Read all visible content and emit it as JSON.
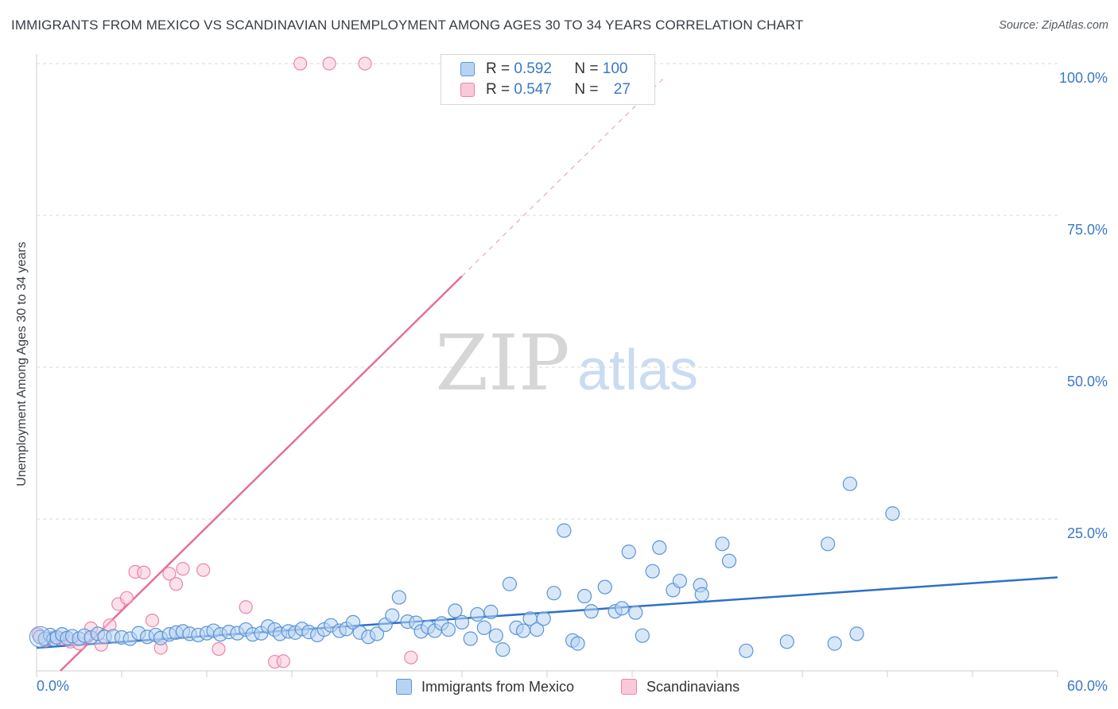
{
  "title": "IMMIGRANTS FROM MEXICO VS SCANDINAVIAN UNEMPLOYMENT AMONG AGES 30 TO 34 YEARS CORRELATION CHART",
  "source": "Source: ZipAtlas.com",
  "watermark": {
    "zip": "ZIP",
    "atlas": "atlas"
  },
  "legend": {
    "rows": [
      {
        "r_label": "R = ",
        "r_value": "0.592",
        "n_label": "N = ",
        "n_value": "100",
        "color": "#5b95d6"
      },
      {
        "r_label": "R = ",
        "r_value": "0.547",
        "n_label": "N = ",
        "n_value": "27",
        "color": "#e985a8"
      }
    ]
  },
  "bottom_legend": [
    {
      "label": "Immigrants from Mexico",
      "color": "#5b95d6"
    },
    {
      "label": "Scandinavians",
      "color": "#e985a8"
    }
  ],
  "chart_data": {
    "type": "scatter",
    "title": "IMMIGRANTS FROM MEXICO VS SCANDINAVIAN UNEMPLOYMENT AMONG AGES 30 TO 34 YEARS CORRELATION CHART",
    "xlabel": "",
    "ylabel": "Unemployment Among Ages 30 to 34 years",
    "xlim": [
      0,
      60
    ],
    "ylim": [
      0,
      102
    ],
    "x_tick_labels": [
      "0.0%",
      "60.0%"
    ],
    "x_tick_values": [
      0,
      60
    ],
    "y_tick_labels": [
      "100.0%",
      "75.0%",
      "50.0%",
      "25.0%"
    ],
    "y_tick_values": [
      100,
      75,
      50,
      25
    ],
    "colors": {
      "blue": "#5b95d6",
      "blue_fill": "#b8d3f2",
      "pink": "#e985a8",
      "pink_fill": "#f9c9d9",
      "grid": "#d9d9d9",
      "tick_label": "#3a78c8"
    },
    "series": [
      {
        "name": "Immigrants from Mexico",
        "r": 0.592,
        "n": 100,
        "trendline": {
          "x": [
            0,
            60
          ],
          "y": [
            3.8,
            15.4
          ],
          "style": "solid"
        },
        "points": [
          [
            0.2,
            5.6
          ],
          [
            0.5,
            5.3
          ],
          [
            0.8,
            5.9
          ],
          [
            1.0,
            5.2
          ],
          [
            1.2,
            5.5
          ],
          [
            1.5,
            6.0
          ],
          [
            1.8,
            5.4
          ],
          [
            2.1,
            5.7
          ],
          [
            2.5,
            5.3
          ],
          [
            2.8,
            5.8
          ],
          [
            3.2,
            5.5
          ],
          [
            3.6,
            6.1
          ],
          [
            4.0,
            5.6
          ],
          [
            4.5,
            5.7
          ],
          [
            5.0,
            5.5
          ],
          [
            5.5,
            5.3
          ],
          [
            6.0,
            6.2
          ],
          [
            6.5,
            5.6
          ],
          [
            7.0,
            5.9
          ],
          [
            7.3,
            5.4
          ],
          [
            7.8,
            6.0
          ],
          [
            8.2,
            6.3
          ],
          [
            8.6,
            6.5
          ],
          [
            9.0,
            6.1
          ],
          [
            9.5,
            5.9
          ],
          [
            10.0,
            6.2
          ],
          [
            10.4,
            6.6
          ],
          [
            10.8,
            6.0
          ],
          [
            11.3,
            6.4
          ],
          [
            11.8,
            6.2
          ],
          [
            12.3,
            6.8
          ],
          [
            12.7,
            6.0
          ],
          [
            13.2,
            6.2
          ],
          [
            13.6,
            7.3
          ],
          [
            14.0,
            6.8
          ],
          [
            14.3,
            6.1
          ],
          [
            14.8,
            6.5
          ],
          [
            15.2,
            6.3
          ],
          [
            15.6,
            6.9
          ],
          [
            16.0,
            6.4
          ],
          [
            16.5,
            5.9
          ],
          [
            16.9,
            6.8
          ],
          [
            17.3,
            7.5
          ],
          [
            17.8,
            6.6
          ],
          [
            18.2,
            6.9
          ],
          [
            18.6,
            8.0
          ],
          [
            19.0,
            6.3
          ],
          [
            19.5,
            5.6
          ],
          [
            20.0,
            6.1
          ],
          [
            20.5,
            7.6
          ],
          [
            20.9,
            9.1
          ],
          [
            21.3,
            12.1
          ],
          [
            21.8,
            8.1
          ],
          [
            22.3,
            7.9
          ],
          [
            22.6,
            6.5
          ],
          [
            23.0,
            7.2
          ],
          [
            23.4,
            6.6
          ],
          [
            23.8,
            7.8
          ],
          [
            24.2,
            6.8
          ],
          [
            24.6,
            9.9
          ],
          [
            25.0,
            8.0
          ],
          [
            25.5,
            5.3
          ],
          [
            25.9,
            9.3
          ],
          [
            26.3,
            7.1
          ],
          [
            26.7,
            9.7
          ],
          [
            27.0,
            5.8
          ],
          [
            27.4,
            3.5
          ],
          [
            27.8,
            14.3
          ],
          [
            28.2,
            7.1
          ],
          [
            28.6,
            6.6
          ],
          [
            29.0,
            8.6
          ],
          [
            29.4,
            6.8
          ],
          [
            29.8,
            8.6
          ],
          [
            30.4,
            12.8
          ],
          [
            31.0,
            23.1
          ],
          [
            31.5,
            5.0
          ],
          [
            31.8,
            4.5
          ],
          [
            32.2,
            12.3
          ],
          [
            32.6,
            9.8
          ],
          [
            33.4,
            13.8
          ],
          [
            34.0,
            9.8
          ],
          [
            34.4,
            10.3
          ],
          [
            34.8,
            19.6
          ],
          [
            35.2,
            9.6
          ],
          [
            35.6,
            5.8
          ],
          [
            36.2,
            16.4
          ],
          [
            36.6,
            20.3
          ],
          [
            37.4,
            13.3
          ],
          [
            37.8,
            14.8
          ],
          [
            39.0,
            14.1
          ],
          [
            39.1,
            12.6
          ],
          [
            40.3,
            20.9
          ],
          [
            40.7,
            18.1
          ],
          [
            41.7,
            3.3
          ],
          [
            44.1,
            4.8
          ],
          [
            46.5,
            20.9
          ],
          [
            46.9,
            4.5
          ],
          [
            47.8,
            30.8
          ],
          [
            48.2,
            6.1
          ],
          [
            50.3,
            25.9
          ]
        ]
      },
      {
        "name": "Scandinavians",
        "r": 0.547,
        "n": 27,
        "trendline": {
          "x": [
            1.4,
            25.0
          ],
          "y": [
            0.0,
            65.0
          ],
          "dashed_x": [
            25.0,
            37.0
          ],
          "dashed_y": [
            65.0,
            98.0
          ],
          "style": "solid+dashed"
        },
        "points": [
          [
            0.1,
            6.0
          ],
          [
            0.5,
            5.0
          ],
          [
            1.0,
            5.5
          ],
          [
            1.5,
            5.3
          ],
          [
            2.0,
            4.8
          ],
          [
            2.5,
            4.5
          ],
          [
            3.2,
            7.0
          ],
          [
            3.8,
            4.3
          ],
          [
            4.3,
            7.5
          ],
          [
            4.8,
            11.0
          ],
          [
            5.3,
            12.0
          ],
          [
            5.8,
            16.3
          ],
          [
            6.3,
            16.2
          ],
          [
            6.8,
            8.3
          ],
          [
            7.3,
            3.8
          ],
          [
            7.8,
            16.0
          ],
          [
            8.2,
            14.3
          ],
          [
            8.6,
            16.8
          ],
          [
            9.8,
            16.6
          ],
          [
            10.7,
            3.6
          ],
          [
            12.3,
            10.5
          ],
          [
            14.0,
            1.5
          ],
          [
            14.5,
            1.6
          ],
          [
            15.5,
            100.0
          ],
          [
            17.2,
            100.0
          ],
          [
            19.3,
            100.0
          ],
          [
            22.0,
            2.2
          ]
        ]
      }
    ]
  }
}
